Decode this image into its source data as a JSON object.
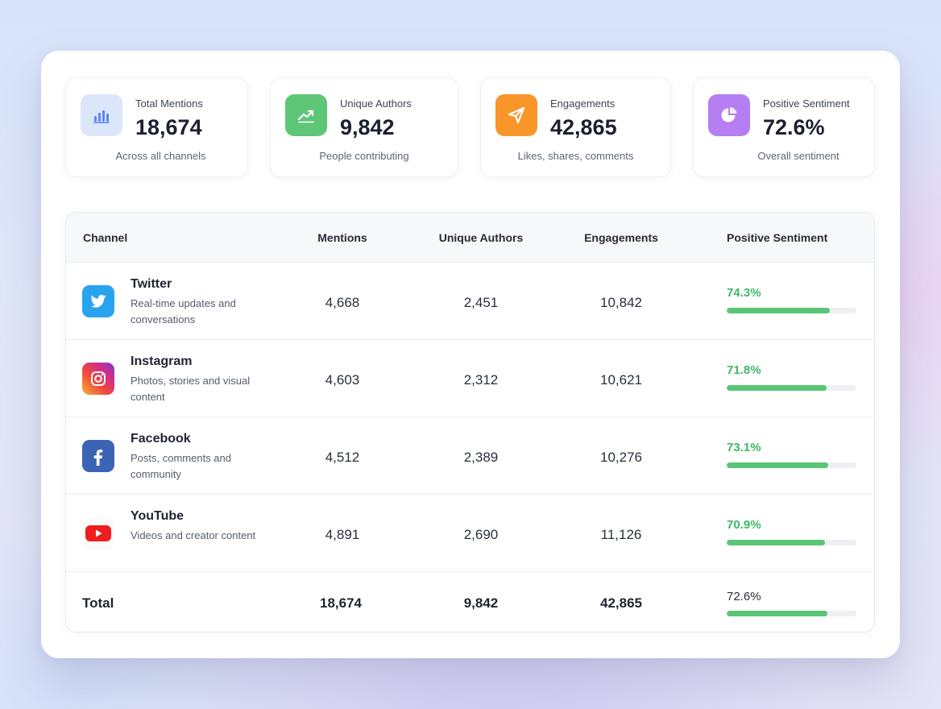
{
  "kpis": [
    {
      "label": "Total Mentions",
      "value": "18,674",
      "sub": "Across all channels",
      "icon": "bar-chart-icon",
      "color": "#dce6fb"
    },
    {
      "label": "Unique Authors",
      "value": "9,842",
      "sub": "People contributing",
      "icon": "trend-up-icon",
      "color": "#5ec777"
    },
    {
      "label": "Engagements",
      "value": "42,865",
      "sub": "Likes, shares, comments",
      "icon": "send-icon",
      "color": "#f8962a"
    },
    {
      "label": "Positive Sentiment",
      "value": "72.6%",
      "sub": "Overall sentiment",
      "icon": "pie-chart-icon",
      "color": "#b57ef2"
    }
  ],
  "table": {
    "headers": {
      "channel": "Channel",
      "mentions": "Mentions",
      "authors": "Unique Authors",
      "engagements": "Engagements",
      "sentiment": "Positive Sentiment"
    },
    "rows": [
      {
        "name": "Twitter",
        "desc": "Real-time updates and conversations",
        "mentions": "4,668",
        "authors": "2,451",
        "engagements": "10,842",
        "sentiment": "74.3%",
        "sentiment_value": 0.743,
        "icon": "twitter-icon",
        "color": "#2aa3ef"
      },
      {
        "name": "Instagram",
        "desc": "Photos, stories and visual content",
        "mentions": "4,603",
        "authors": "2,312",
        "engagements": "10,621",
        "sentiment": "71.8%",
        "sentiment_value": 0.718,
        "icon": "instagram-icon",
        "color": "#d63b7e"
      },
      {
        "name": "Facebook",
        "desc": "Posts, comments and community",
        "mentions": "4,512",
        "authors": "2,389",
        "engagements": "10,276",
        "sentiment": "73.1%",
        "sentiment_value": 0.731,
        "icon": "facebook-icon",
        "color": "#3c64b5"
      },
      {
        "name": "YouTube",
        "desc": "Videos and creator content",
        "mentions": "4,891",
        "authors": "2,690",
        "engagements": "11,126",
        "sentiment": "70.9%",
        "sentiment_value": 0.709,
        "icon": "youtube-icon",
        "color": "#ee1e1e"
      }
    ],
    "total": {
      "label": "Total",
      "mentions": "18,674",
      "authors": "9,842",
      "engagements": "42,865",
      "sentiment": "72.6%",
      "sentiment_value": 0.726
    }
  },
  "colors": {
    "positive": "#3fb866",
    "bar": "#5ac575",
    "bar_track": "#eef0f3"
  }
}
